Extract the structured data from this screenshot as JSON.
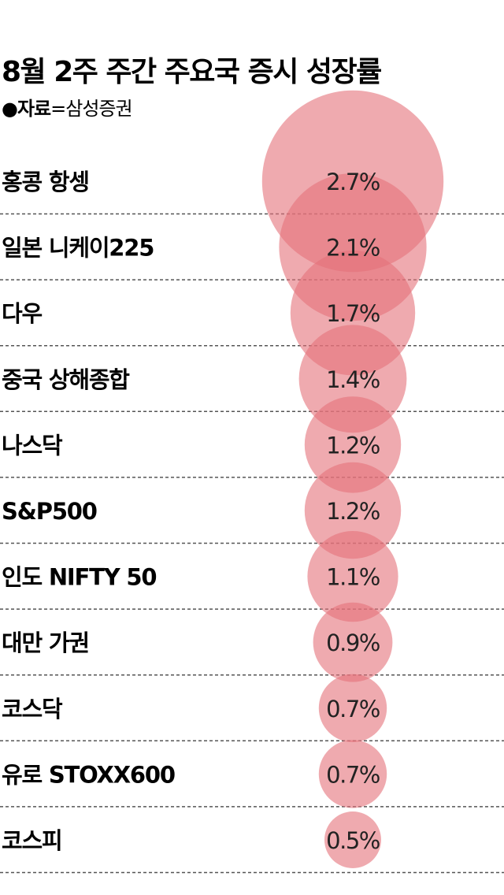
{
  "chart_data": {
    "type": "bubble",
    "title": "8월 2주 주간 주요국 증시 성장률",
    "source": {
      "bullet": "●",
      "label": "자료",
      "value": "=삼성증권"
    },
    "categories": [
      "홍콩 항셍",
      "일본 니케이225",
      "다우",
      "중국 상해종합",
      "나스닥",
      "S&P500",
      "인도 NIFTY 50",
      "대만 가권",
      "코스닥",
      "유로 STOXX600",
      "코스피"
    ],
    "values": [
      2.7,
      2.1,
      1.7,
      1.4,
      1.2,
      1.2,
      1.1,
      0.9,
      0.7,
      0.7,
      0.5
    ],
    "value_labels": [
      "2.7%",
      "2.1%",
      "1.7%",
      "1.4%",
      "1.2%",
      "1.2%",
      "1.1%",
      "0.9%",
      "0.7%",
      "0.7%",
      "0.5%"
    ],
    "unit": "%",
    "bubble_color": "#e4727a",
    "divider_style": "dashed",
    "divider_color": "#555555"
  }
}
